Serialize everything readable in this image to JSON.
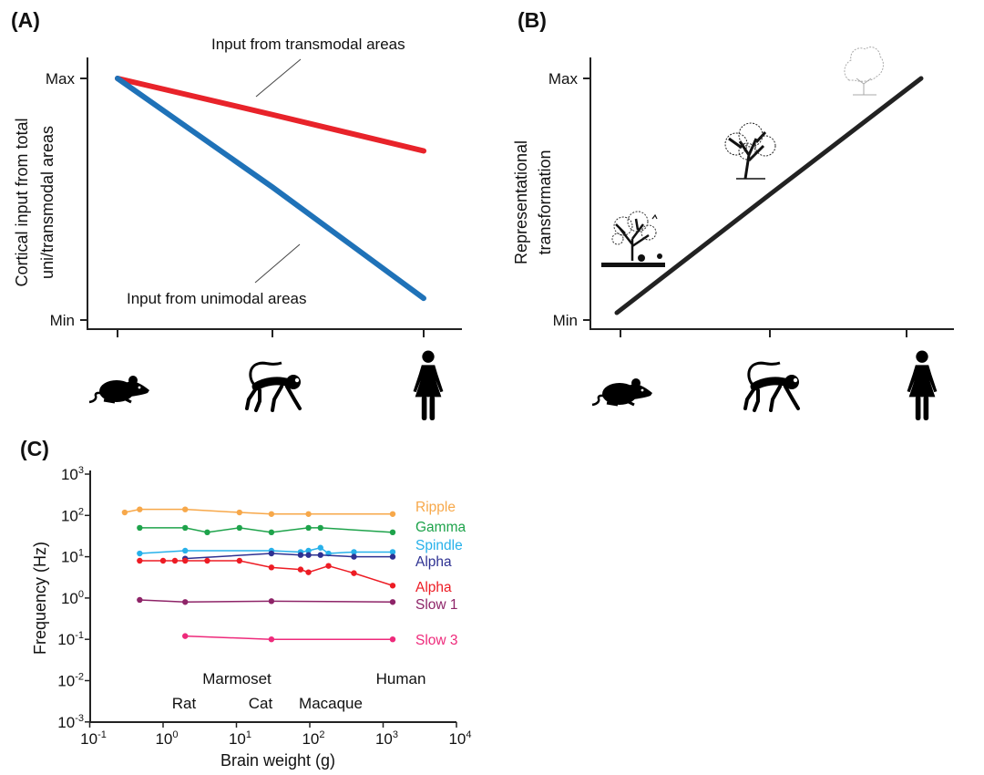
{
  "chart_data": [
    {
      "panel": "(A)",
      "type": "line",
      "categories": [
        "Mouse",
        "Monkey",
        "Human"
      ],
      "category_icons": [
        "mouse-icon",
        "monkey-icon",
        "human-female-icon"
      ],
      "ylabel_lines": [
        "Cortical input from total",
        "uni/transmodal areas"
      ],
      "yticks": [
        "Min",
        "Max"
      ],
      "ylim": [
        0,
        1
      ],
      "series": [
        {
          "name": "Input from transmodal areas",
          "color": "#e8232a",
          "values": [
            1.0,
            0.85,
            0.7
          ]
        },
        {
          "name": "Input from unimodal areas",
          "color": "#1f72b8",
          "values": [
            1.0,
            0.55,
            0.09
          ]
        }
      ]
    },
    {
      "panel": "(B)",
      "type": "line",
      "categories": [
        "Mouse",
        "Monkey",
        "Human"
      ],
      "category_icons": [
        "mouse-icon",
        "monkey-icon",
        "human-female-icon"
      ],
      "ylabel_lines": [
        "Representational",
        "transformation"
      ],
      "yticks": [
        "Min",
        "Max"
      ],
      "ylim": [
        0,
        1
      ],
      "series": [
        {
          "name": "Representational transformation",
          "color": "#222222",
          "values": [
            0.03,
            0.52,
            1.0
          ]
        }
      ],
      "illustrations": [
        "detailed-tree-scene-icon",
        "tree-silhouette-icon",
        "faint-tree-outline-icon"
      ]
    },
    {
      "panel": "(C)",
      "type": "line",
      "xscale": "log",
      "yscale": "log",
      "xlabel": "Brain weight (g)",
      "ylabel": "Frequency (Hz)",
      "xlim_exp": [
        -1,
        4
      ],
      "ylim_exp": [
        -3,
        3
      ],
      "xtick_exponents": [
        -1,
        0,
        1,
        2,
        3,
        4
      ],
      "ytick_exponents": [
        -3,
        -2,
        -1,
        0,
        1,
        2,
        3
      ],
      "tick_base": "10",
      "species_labels": [
        "Marmoset",
        "Human",
        "Rat",
        "Cat",
        "Macaque"
      ],
      "series": [
        {
          "name": "Ripple",
          "color": "#f7a84a",
          "x": [
            0.3,
            0.48,
            2,
            11,
            30,
            96,
            1350
          ],
          "y": [
            118,
            140,
            140,
            118,
            108,
            108,
            108
          ]
        },
        {
          "name": "Gamma",
          "color": "#1ea34b",
          "x": [
            0.48,
            2,
            4,
            11,
            30,
            96,
            140,
            1350
          ],
          "y": [
            50,
            50,
            39,
            50,
            39,
            50,
            50,
            39
          ]
        },
        {
          "name": "Spindle",
          "color": "#27b1ea",
          "x": [
            0.48,
            2,
            30,
            75,
            96,
            140,
            180,
            400,
            1350
          ],
          "y": [
            12,
            14,
            14,
            13,
            14,
            16.5,
            12,
            13,
            13
          ]
        },
        {
          "name": "Alpha",
          "color": "#2e3192",
          "x": [
            2,
            30,
            75,
            96,
            140,
            400,
            1350
          ],
          "y": [
            9,
            12,
            11,
            11,
            11,
            10,
            10
          ]
        },
        {
          "name": "Alpha",
          "color": "#ed1c24",
          "x": [
            0.48,
            1.0,
            1.45,
            2,
            4,
            11,
            30,
            75,
            96,
            180,
            400,
            1350
          ],
          "y": [
            8,
            8,
            8,
            8,
            8,
            8,
            5.5,
            4.9,
            4.2,
            6,
            4,
            2
          ]
        },
        {
          "name": "Slow 1",
          "color": "#8e2468",
          "x": [
            0.48,
            2,
            30,
            1350
          ],
          "y": [
            0.9,
            0.8,
            0.84,
            0.8
          ]
        },
        {
          "name": "Slow 3",
          "color": "#ee2a7b",
          "x": [
            2,
            30,
            1350
          ],
          "y": [
            0.12,
            0.1,
            0.1
          ]
        }
      ]
    }
  ]
}
